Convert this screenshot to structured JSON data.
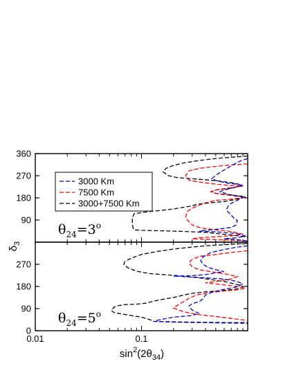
{
  "chart_data": [
    {
      "panel": "top",
      "type": "line",
      "annotation": {
        "symbol": "θ",
        "subscript": "24",
        "value": "=3",
        "sup": "o"
      },
      "xscale": "log",
      "xlim": [
        0.01,
        1
      ],
      "ylim": [
        0,
        360
      ],
      "yticks": [
        90,
        180,
        270,
        360
      ],
      "legend": {
        "placement": "top-left",
        "entries": [
          {
            "label": "3000 Km",
            "color": "#0000cc"
          },
          {
            "label": "7500 Km",
            "color": "#ff0000"
          },
          {
            "label": "3000+7500 Km",
            "color": "#000000"
          }
        ]
      },
      "series": [
        {
          "color": "#000000",
          "points": [
            [
              1.0,
              350
            ],
            [
              0.7,
              345
            ],
            [
              0.5,
              340
            ],
            [
              0.35,
              332
            ],
            [
              0.25,
              322
            ],
            [
              0.2,
              312
            ],
            [
              0.17,
              300
            ],
            [
              0.16,
              285
            ],
            [
              0.18,
              270
            ],
            [
              0.22,
              262
            ],
            [
              0.3,
              258
            ],
            [
              0.5,
              250
            ],
            [
              0.75,
              240
            ],
            [
              0.9,
              230
            ],
            [
              0.7,
              220
            ],
            [
              0.5,
              212
            ],
            [
              0.45,
              205
            ],
            [
              0.5,
              198
            ],
            [
              0.75,
              190
            ],
            [
              0.95,
              185
            ],
            [
              0.8,
              175
            ],
            [
              0.6,
              165
            ],
            [
              0.45,
              160
            ],
            [
              0.35,
              155
            ],
            [
              0.28,
              145
            ],
            [
              0.2,
              135
            ],
            [
              0.16,
              130
            ],
            [
              0.12,
              125
            ],
            [
              0.1,
              120
            ],
            [
              0.085,
              115
            ],
            [
              0.082,
              100
            ],
            [
              0.082,
              80
            ],
            [
              0.083,
              60
            ],
            [
              0.085,
              50
            ],
            [
              0.1,
              48
            ],
            [
              0.2,
              45
            ],
            [
              0.4,
              40
            ],
            [
              0.6,
              32
            ],
            [
              0.85,
              25
            ],
            [
              1.0,
              20
            ]
          ]
        },
        {
          "color": "#ff0000",
          "points": [
            [
              1.0,
              318
            ],
            [
              0.7,
              314
            ],
            [
              0.5,
              308
            ],
            [
              0.35,
              300
            ],
            [
              0.28,
              290
            ],
            [
              0.26,
              270
            ],
            [
              0.28,
              252
            ],
            [
              0.35,
              244
            ],
            [
              0.5,
              236
            ],
            [
              0.7,
              230
            ],
            [
              0.9,
              228
            ],
            [
              0.7,
              222
            ],
            [
              0.5,
              212
            ],
            [
              0.45,
              205
            ],
            [
              0.52,
              197
            ],
            [
              0.75,
              188
            ],
            [
              0.95,
              182
            ],
            [
              0.7,
              175
            ],
            [
              0.5,
              170
            ],
            [
              0.4,
              160
            ],
            [
              0.35,
              150
            ],
            [
              0.3,
              138
            ],
            [
              0.27,
              125
            ],
            [
              0.26,
              100
            ],
            [
              0.27,
              90
            ],
            [
              0.3,
              70
            ],
            [
              0.35,
              60
            ],
            [
              0.4,
              55
            ],
            [
              0.5,
              50
            ],
            [
              0.65,
              45
            ],
            [
              0.8,
              38
            ],
            [
              0.9,
              32
            ],
            [
              0.7,
              26
            ],
            [
              0.5,
              22
            ],
            [
              0.35,
              18
            ],
            [
              0.3,
              14
            ],
            [
              0.5,
              10
            ],
            [
              0.8,
              7
            ],
            [
              1.0,
              5
            ]
          ]
        },
        {
          "color": "#0000cc",
          "points": [
            [
              1.0,
              340
            ],
            [
              0.85,
              330
            ],
            [
              0.75,
              318
            ],
            [
              0.65,
              302
            ],
            [
              0.58,
              290
            ],
            [
              0.5,
              272
            ],
            [
              0.46,
              258
            ],
            [
              0.52,
              248
            ],
            [
              0.65,
              240
            ],
            [
              0.8,
              235
            ],
            [
              0.9,
              230
            ],
            [
              0.75,
              222
            ],
            [
              0.6,
              212
            ],
            [
              0.55,
              205
            ],
            [
              0.65,
              195
            ],
            [
              0.8,
              188
            ],
            [
              0.9,
              182
            ],
            [
              0.8,
              170
            ],
            [
              0.7,
              158
            ],
            [
              0.65,
              145
            ],
            [
              0.63,
              130
            ],
            [
              0.7,
              110
            ],
            [
              0.75,
              95
            ],
            [
              0.8,
              88
            ],
            [
              0.78,
              70
            ],
            [
              0.7,
              60
            ],
            [
              0.5,
              52
            ],
            [
              0.4,
              48
            ],
            [
              0.35,
              45
            ],
            [
              0.5,
              42
            ],
            [
              0.8,
              35
            ],
            [
              0.95,
              25
            ],
            [
              0.8,
              18
            ],
            [
              0.6,
              14
            ],
            [
              0.8,
              10
            ],
            [
              1.0,
              5
            ]
          ]
        }
      ]
    },
    {
      "panel": "bottom",
      "type": "line",
      "annotation": {
        "symbol": "θ",
        "subscript": "24",
        "value": "=5",
        "sup": "o"
      },
      "xscale": "log",
      "xlim": [
        0.01,
        1
      ],
      "ylim": [
        0,
        360
      ],
      "yticks": [
        0,
        90,
        180,
        270
      ],
      "xticks": [
        0.01,
        0.1
      ],
      "xlabel": {
        "main": "sin",
        "sup": "2",
        "paren_open": "(2θ",
        "sub": "34",
        "paren_close": ")"
      },
      "ylabel": {
        "main": "δ",
        "sub": "3"
      },
      "series": [
        {
          "color": "#000000",
          "points": [
            [
              1.0,
              355
            ],
            [
              0.6,
              350
            ],
            [
              0.4,
              345
            ],
            [
              0.3,
              340
            ],
            [
              0.2,
              332
            ],
            [
              0.14,
              322
            ],
            [
              0.1,
              310
            ],
            [
              0.08,
              295
            ],
            [
              0.07,
              282
            ],
            [
              0.068,
              270
            ],
            [
              0.075,
              255
            ],
            [
              0.09,
              242
            ],
            [
              0.12,
              232
            ],
            [
              0.2,
              225
            ],
            [
              0.35,
              215
            ],
            [
              0.6,
              200
            ],
            [
              0.85,
              185
            ],
            [
              0.9,
              178
            ],
            [
              0.8,
              170
            ],
            [
              0.55,
              162
            ],
            [
              0.4,
              158
            ],
            [
              0.3,
              152
            ],
            [
              0.25,
              145
            ],
            [
              0.2,
              135
            ],
            [
              0.16,
              128
            ],
            [
              0.13,
              120
            ],
            [
              0.11,
              112
            ],
            [
              0.09,
              108
            ],
            [
              0.07,
              106
            ],
            [
              0.06,
              102
            ],
            [
              0.055,
              95
            ],
            [
              0.052,
              82
            ],
            [
              0.055,
              74
            ],
            [
              0.065,
              68
            ],
            [
              0.08,
              62
            ],
            [
              0.1,
              55
            ],
            [
              0.12,
              45
            ],
            [
              0.13,
              38
            ],
            [
              0.2,
              36
            ],
            [
              0.4,
              34
            ],
            [
              0.7,
              33
            ],
            [
              1.0,
              33
            ]
          ]
        },
        {
          "color": "#ff0000",
          "points": [
            [
              1.0,
              325
            ],
            [
              0.7,
              318
            ],
            [
              0.5,
              310
            ],
            [
              0.35,
              302
            ],
            [
              0.3,
              290
            ],
            [
              0.28,
              275
            ],
            [
              0.3,
              260
            ],
            [
              0.35,
              248
            ],
            [
              0.45,
              240
            ],
            [
              0.6,
              232
            ],
            [
              0.8,
              220
            ],
            [
              0.7,
              210
            ],
            [
              0.5,
              200
            ],
            [
              0.4,
              195
            ],
            [
              0.5,
              190
            ],
            [
              0.8,
              180
            ],
            [
              0.95,
              172
            ],
            [
              0.75,
              165
            ],
            [
              0.55,
              160
            ],
            [
              0.4,
              152
            ],
            [
              0.33,
              145
            ],
            [
              0.28,
              132
            ],
            [
              0.25,
              118
            ],
            [
              0.22,
              105
            ],
            [
              0.2,
              92
            ],
            [
              0.22,
              85
            ],
            [
              0.26,
              75
            ],
            [
              0.35,
              65
            ],
            [
              0.5,
              58
            ],
            [
              0.7,
              50
            ],
            [
              0.85,
              45
            ],
            [
              1.0,
              42
            ]
          ]
        },
        {
          "color": "#0000cc",
          "points": [
            [
              1.0,
              345
            ],
            [
              0.8,
              340
            ],
            [
              0.6,
              330
            ],
            [
              0.45,
              318
            ],
            [
              0.38,
              300
            ],
            [
              0.36,
              285
            ],
            [
              0.38,
              270
            ],
            [
              0.42,
              258
            ],
            [
              0.5,
              248
            ],
            [
              0.6,
              240
            ],
            [
              0.5,
              235
            ],
            [
              0.4,
              228
            ],
            [
              0.3,
              224
            ],
            [
              0.2,
              222
            ],
            [
              0.25,
              220
            ],
            [
              0.4,
              215
            ],
            [
              0.6,
              210
            ],
            [
              0.8,
              200
            ],
            [
              0.9,
              190
            ],
            [
              0.8,
              178
            ],
            [
              0.55,
              165
            ],
            [
              0.45,
              155
            ],
            [
              0.4,
              145
            ],
            [
              0.38,
              130
            ],
            [
              0.35,
              118
            ],
            [
              0.3,
              110
            ],
            [
              0.28,
              100
            ],
            [
              0.29,
              90
            ],
            [
              0.31,
              80
            ],
            [
              0.35,
              70
            ],
            [
              0.3,
              62
            ],
            [
              0.2,
              55
            ],
            [
              0.15,
              45
            ],
            [
              0.13,
              38
            ],
            [
              0.2,
              35
            ],
            [
              0.4,
              33
            ],
            [
              0.7,
              31
            ],
            [
              1.0,
              30
            ]
          ]
        }
      ]
    }
  ]
}
